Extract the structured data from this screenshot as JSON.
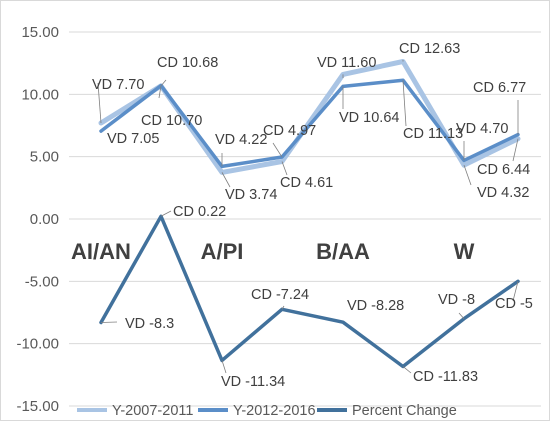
{
  "chart_data": {
    "type": "line",
    "categories": [
      "AI/AN",
      "A/PI",
      "B/AA",
      "W"
    ],
    "ylim": [
      -15,
      15
    ],
    "y_ticks": [
      "15.00",
      "10.00",
      "5.00",
      "0.00",
      "-5.00",
      "-10.00",
      "-15.00"
    ],
    "y_tick_values": [
      15,
      10,
      5,
      0,
      -5,
      -10,
      -15
    ],
    "grid": true,
    "legend_position": "bottom",
    "x": [
      1,
      2,
      3,
      4,
      5,
      6,
      7,
      8
    ],
    "series": [
      {
        "name": "Y-2007-2011",
        "color": "#a9c4e4",
        "values": [
          7.7,
          10.68,
          3.74,
          4.61,
          11.6,
          12.63,
          4.32,
          6.44
        ]
      },
      {
        "name": "Y-2012-2016",
        "color": "#5b8ec8",
        "values": [
          7.05,
          10.7,
          4.22,
          4.97,
          10.64,
          11.13,
          4.7,
          6.77
        ]
      },
      {
        "name": "Percent Change",
        "color": "#41719c",
        "values": [
          -8.3,
          0.22,
          -11.34,
          -7.24,
          -8.28,
          -11.83,
          -8,
          -5
        ]
      }
    ],
    "annotations": [
      {
        "text": "VD 7.70",
        "x": 1,
        "y": 7.7
      },
      {
        "text": "VD 7.05",
        "x": 1,
        "y": 7.05
      },
      {
        "text": "CD 10.68",
        "x": 2,
        "y": 10.68
      },
      {
        "text": "CD 10.70",
        "x": 2,
        "y": 10.7
      },
      {
        "text": "VD 4.22",
        "x": 3,
        "y": 4.22
      },
      {
        "text": "VD 3.74",
        "x": 3,
        "y": 3.74
      },
      {
        "text": "CD 4.97",
        "x": 4,
        "y": 4.97
      },
      {
        "text": "CD 4.61",
        "x": 4,
        "y": 4.61
      },
      {
        "text": "VD 11.60",
        "x": 5,
        "y": 11.6
      },
      {
        "text": "VD 10.64",
        "x": 5,
        "y": 10.64
      },
      {
        "text": "CD 12.63",
        "x": 6,
        "y": 12.63
      },
      {
        "text": "CD 11.13",
        "x": 6,
        "y": 11.13
      },
      {
        "text": "VD 4.70",
        "x": 7,
        "y": 4.7
      },
      {
        "text": "VD 4.32",
        "x": 7,
        "y": 4.32
      },
      {
        "text": "CD 6.77",
        "x": 8,
        "y": 6.77
      },
      {
        "text": "CD 6.44",
        "x": 8,
        "y": 6.44
      },
      {
        "text": "VD -8.3",
        "x": 1,
        "y": -8.3
      },
      {
        "text": "CD 0.22",
        "x": 2,
        "y": 0.22
      },
      {
        "text": "VD -11.34",
        "x": 3,
        "y": -11.34
      },
      {
        "text": "CD -7.24",
        "x": 4,
        "y": -7.24
      },
      {
        "text": "VD -8.28",
        "x": 5,
        "y": -8.28
      },
      {
        "text": "CD -11.83",
        "x": 6,
        "y": -11.83
      },
      {
        "text": "VD -8",
        "x": 7,
        "y": -8
      },
      {
        "text": "CD -5",
        "x": 8,
        "y": -5
      }
    ]
  }
}
